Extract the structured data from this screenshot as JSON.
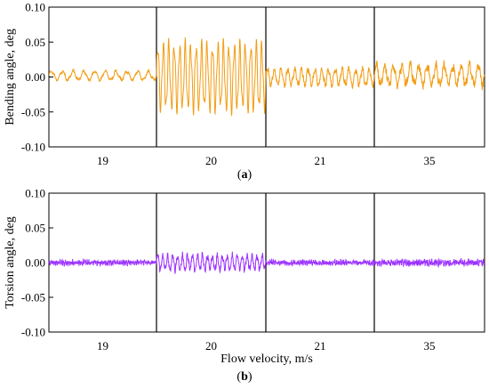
{
  "figure": {
    "caption_a": "a",
    "caption_b": "b"
  },
  "chart_data": [
    {
      "type": "line",
      "id": "a",
      "ylabel": "Bending angle, deg",
      "xlabel": "",
      "ylim": [
        -0.1,
        0.1
      ],
      "yticks": [
        "0.10",
        "0.05",
        "0.00",
        "-0.05",
        "-0.10"
      ],
      "ytick_values": [
        0.1,
        0.05,
        0.0,
        -0.05,
        -0.1
      ],
      "segments": [
        {
          "label": "19",
          "amplitude": 0.006,
          "mean": 0.002,
          "cycles": 10,
          "noise": 0.0015
        },
        {
          "label": "20",
          "amplitude": 0.044,
          "mean": 0.0,
          "cycles": 20,
          "noise": 0.002
        },
        {
          "label": "21",
          "amplitude": 0.011,
          "mean": 0.0,
          "cycles": 16,
          "noise": 0.004
        },
        {
          "label": "35",
          "amplitude": 0.013,
          "mean": 0.003,
          "cycles": 13,
          "noise": 0.006
        }
      ],
      "color": "#F39C12",
      "grid": false
    },
    {
      "type": "line",
      "id": "b",
      "ylabel": "Torsion angle, deg",
      "xlabel": "Flow velocity, m/s",
      "ylim": [
        -0.1,
        0.1
      ],
      "yticks": [
        "0.10",
        "0.05",
        "0.00",
        "-0.05",
        "-0.10"
      ],
      "ytick_values": [
        0.1,
        0.05,
        0.0,
        -0.05,
        -0.1
      ],
      "segments": [
        {
          "label": "19",
          "amplitude": 0.002,
          "mean": 0.0,
          "cycles": 60,
          "noise": 0.003
        },
        {
          "label": "20",
          "amplitude": 0.01,
          "mean": 0.0,
          "cycles": 22,
          "noise": 0.004
        },
        {
          "label": "21",
          "amplitude": 0.002,
          "mean": 0.0,
          "cycles": 60,
          "noise": 0.003
        },
        {
          "label": "35",
          "amplitude": 0.002,
          "mean": 0.0,
          "cycles": 60,
          "noise": 0.004
        }
      ],
      "color": "#9B30FF",
      "grid": false
    }
  ]
}
